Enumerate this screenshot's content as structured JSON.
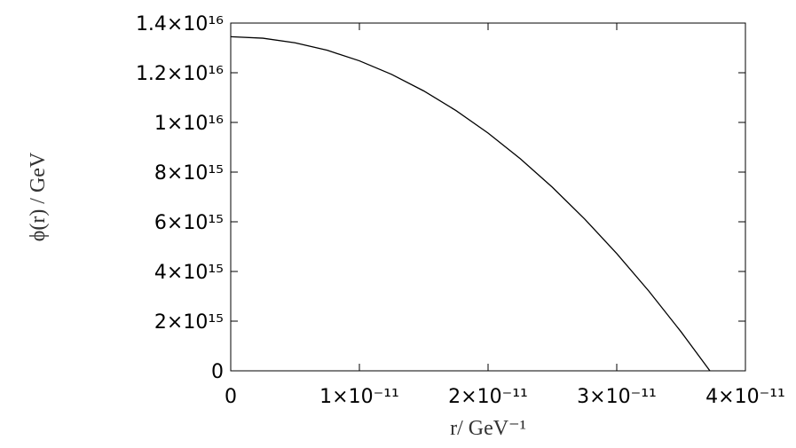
{
  "chart_data": {
    "type": "line",
    "x_label": "r/ GeV⁻¹",
    "y_label": "ϕ(r) / GeV",
    "x": [
      0,
      2.5e-12,
      5e-12,
      7.5e-12,
      1e-11,
      1.25e-11,
      1.5e-11,
      1.75e-11,
      2e-11,
      2.25e-11,
      2.5e-11,
      2.75e-11,
      3e-11,
      3.25e-11,
      3.5e-11,
      3.724e-11
    ],
    "series": [
      {
        "color": "#000000",
        "values": [
          1.345e+16,
          1.339e+16,
          1.3207e+16,
          1.2905e+16,
          1.248e+16,
          1.1935e+16,
          1.1268e+16,
          1.048e+16,
          9571000000000000.0,
          8540000000000000.0,
          7388000000000000.0,
          6115000000000000.0,
          4721000000000000.0,
          3206000000000000.0,
          1569000000000000.0,
          0
        ]
      }
    ],
    "xlim": [
      0,
      4e-11
    ],
    "ylim": [
      0,
      1.4e+16
    ],
    "xticks": [
      0,
      {
        "value": 1e-11,
        "label": "1×10⁻¹¹"
      },
      {
        "value": 2e-11,
        "label": "2×10⁻¹¹"
      },
      {
        "value": 3e-11,
        "label": "3×10⁻¹¹"
      },
      {
        "value": 4e-11,
        "label": "4×10⁻¹¹"
      }
    ],
    "yticks": [
      0,
      {
        "value": 2000000000000000.0,
        "label": "2×10¹⁵"
      },
      {
        "value": 4000000000000000.0,
        "label": "4×10¹⁵"
      },
      {
        "value": 6000000000000000.0,
        "label": "6×10¹⁵"
      },
      {
        "value": 8000000000000000.0,
        "label": "8×10¹⁵"
      },
      {
        "value": 1e+16,
        "label": "1×10¹⁶"
      },
      {
        "value": 1.2e+16,
        "label": "1.2×10¹⁶"
      },
      {
        "value": 1.4e+16,
        "label": "1.4×10¹⁶"
      }
    ],
    "grid": false
  }
}
